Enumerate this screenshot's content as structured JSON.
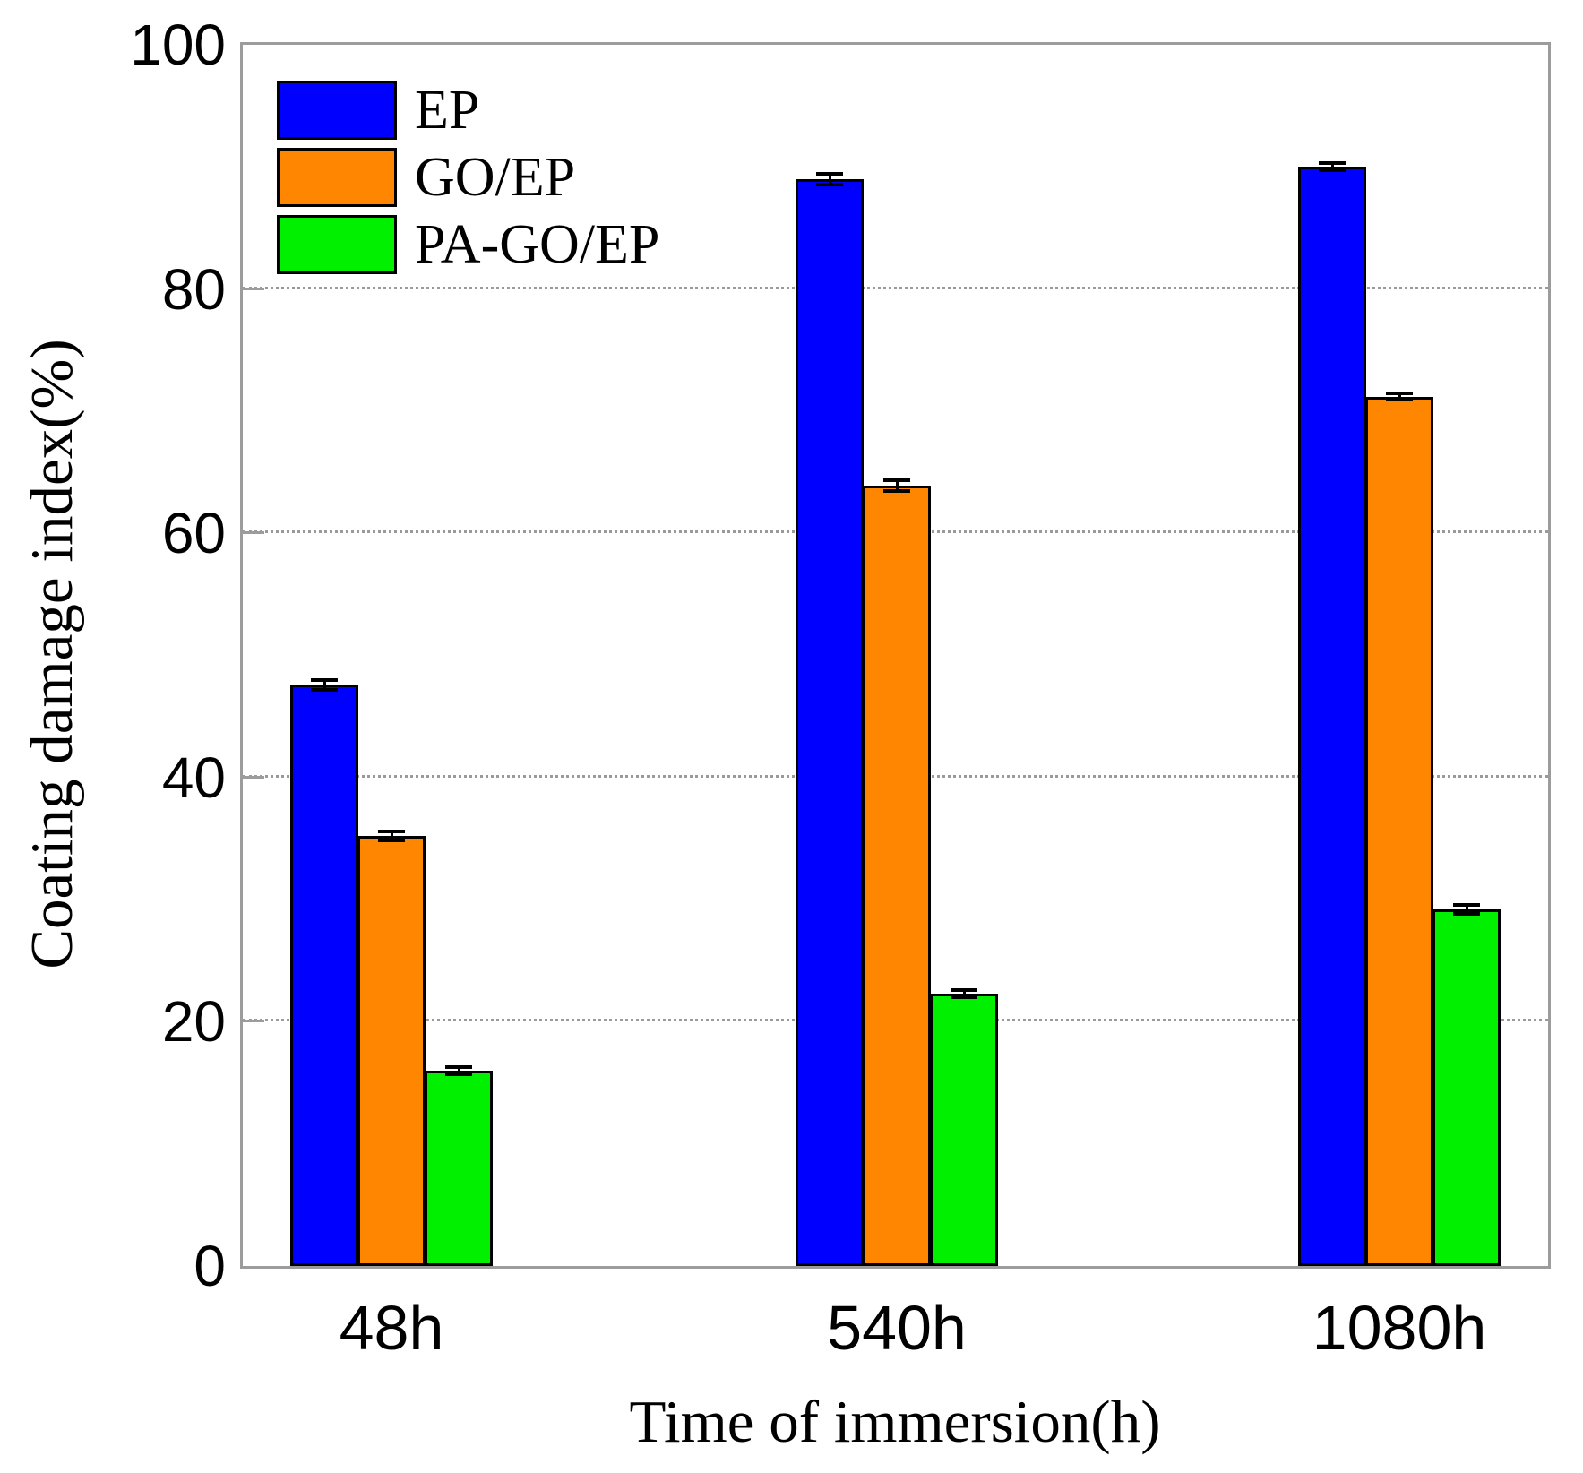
{
  "chart_data": {
    "type": "bar",
    "title": "",
    "xlabel": "Time of immersion(h)",
    "ylabel": "Coating damage index(%)",
    "categories": [
      "48h",
      "540h",
      "1080h"
    ],
    "series": [
      {
        "name": "EP",
        "color": "#0000ff",
        "values": [
          47.6,
          89.0,
          90.0
        ],
        "errors": [
          0.4,
          0.45,
          0.3
        ]
      },
      {
        "name": "GO/EP",
        "color": "#ff8600",
        "values": [
          35.2,
          63.9,
          71.2
        ],
        "errors": [
          0.35,
          0.45,
          0.25
        ]
      },
      {
        "name": "PA-GO/EP",
        "color": "#00f000",
        "values": [
          16.0,
          22.3,
          29.2
        ],
        "errors": [
          0.3,
          0.3,
          0.35
        ]
      }
    ],
    "ylim": [
      0,
      100
    ],
    "yticks": [
      0,
      20,
      40,
      60,
      80,
      100
    ],
    "grid": "horizontal dotted at 20,40,60,80",
    "error_bars": true,
    "legend_position": "top-left-inside",
    "colors": {
      "frame": "#9c9c9c",
      "grid": "#9a9a9a",
      "bar_border": "#000000",
      "text": "#000000"
    }
  }
}
